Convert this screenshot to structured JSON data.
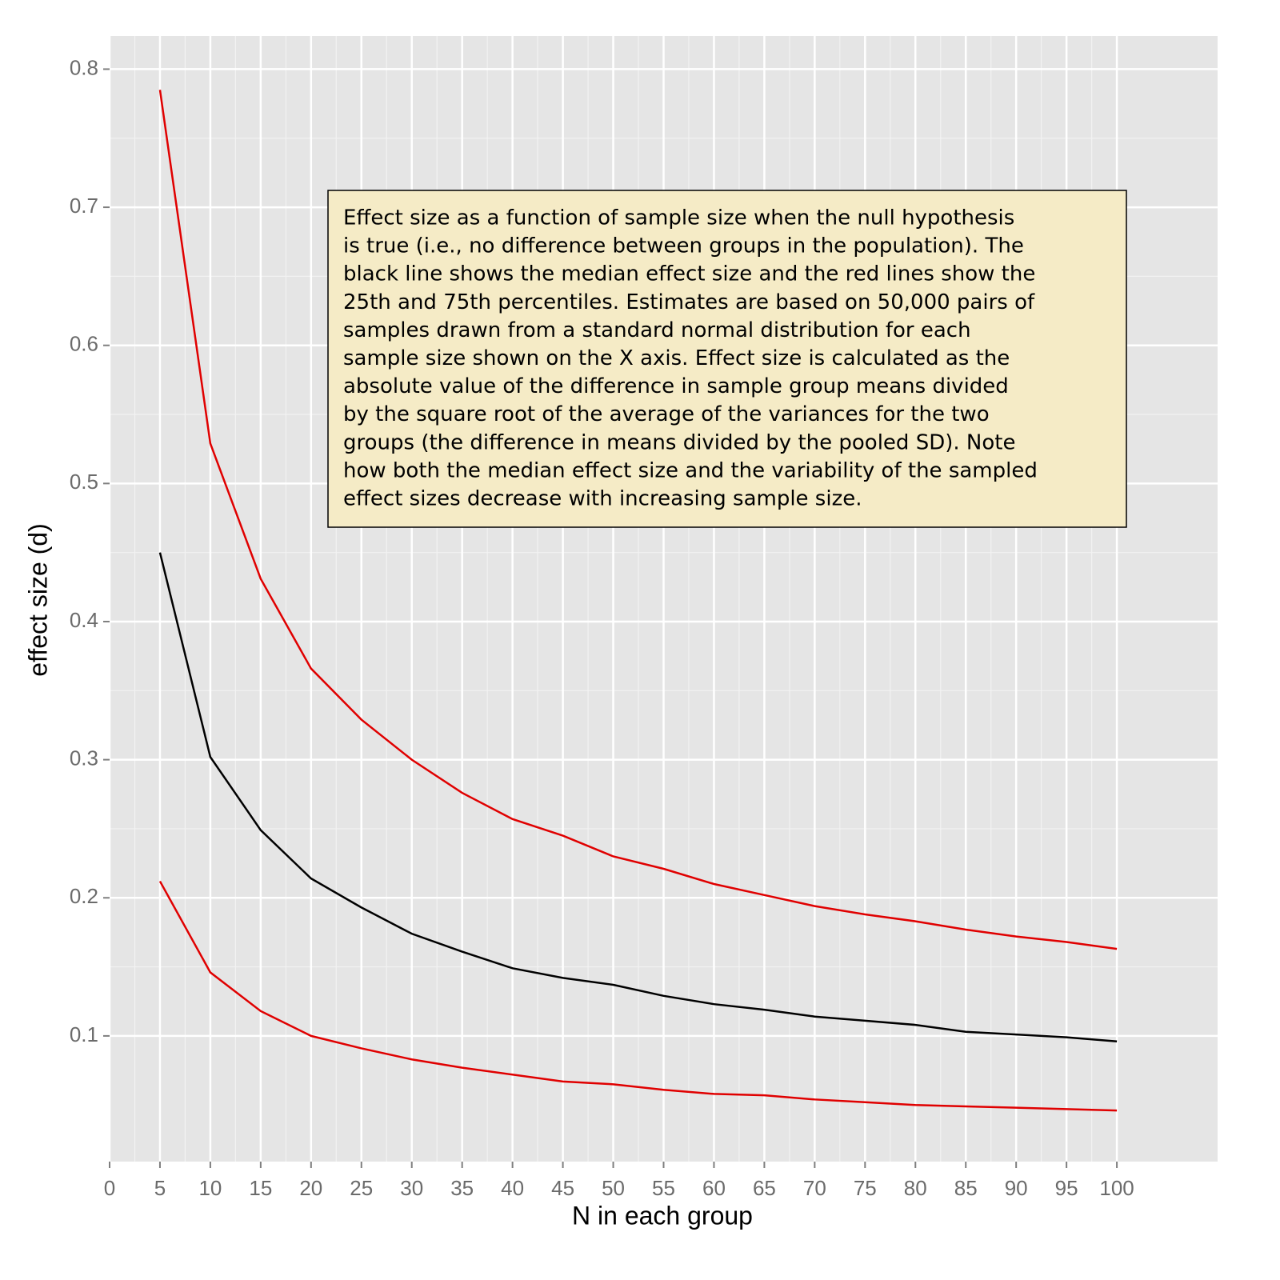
{
  "chart_data": {
    "type": "line",
    "x_label": "N in each group",
    "y_label": "effect size (d)",
    "annotation": [
      "Effect size as a function of sample size when the null hypothesis",
      "is true (i.e., no difference between groups in the population). The",
      "black line shows the median effect size and the red lines show the",
      "25th and 75th percentiles. Estimates are based on 50,000 pairs of",
      "samples drawn from a standard normal distribution for each",
      "sample size shown on the X axis. Effect size is calculated as the",
      "absolute value of the difference in sample group means divided",
      "by the square root of the average of the variances for the two",
      "groups (the difference in means divided by the pooled SD). Note",
      "how both the median effect size and the variability of the sampled",
      "effect sizes decrease with increasing sample size."
    ],
    "x": [
      5,
      10,
      15,
      20,
      25,
      30,
      35,
      40,
      45,
      50,
      55,
      60,
      65,
      70,
      75,
      80,
      85,
      90,
      95,
      100
    ],
    "series": [
      {
        "color": "#e00000",
        "values": [
          0.785,
          0.529,
          0.431,
          0.366,
          0.329,
          0.3,
          0.276,
          0.257,
          0.245,
          0.23,
          0.221,
          0.21,
          0.202,
          0.194,
          0.188,
          0.183,
          0.177,
          0.172,
          0.168,
          0.163
        ]
      },
      {
        "color": "#000000",
        "values": [
          0.45,
          0.302,
          0.249,
          0.214,
          0.193,
          0.174,
          0.161,
          0.149,
          0.142,
          0.137,
          0.129,
          0.123,
          0.119,
          0.114,
          0.111,
          0.108,
          0.103,
          0.101,
          0.099,
          0.096
        ]
      },
      {
        "color": "#e00000",
        "values": [
          0.212,
          0.146,
          0.118,
          0.1,
          0.091,
          0.083,
          0.077,
          0.072,
          0.067,
          0.065,
          0.061,
          0.058,
          0.057,
          0.054,
          0.052,
          0.05,
          0.049,
          0.048,
          0.047,
          0.046
        ]
      }
    ],
    "xlim": [
      0,
      110
    ],
    "xticks": [
      0,
      5,
      10,
      15,
      20,
      25,
      30,
      35,
      40,
      45,
      50,
      55,
      60,
      65,
      70,
      75,
      80,
      85,
      90,
      95,
      100
    ],
    "ylim": [
      0.009,
      0.824
    ],
    "yticks": [
      0.1,
      0.2,
      0.3,
      0.4,
      0.5,
      0.6,
      0.7,
      0.8
    ],
    "grid": true
  }
}
